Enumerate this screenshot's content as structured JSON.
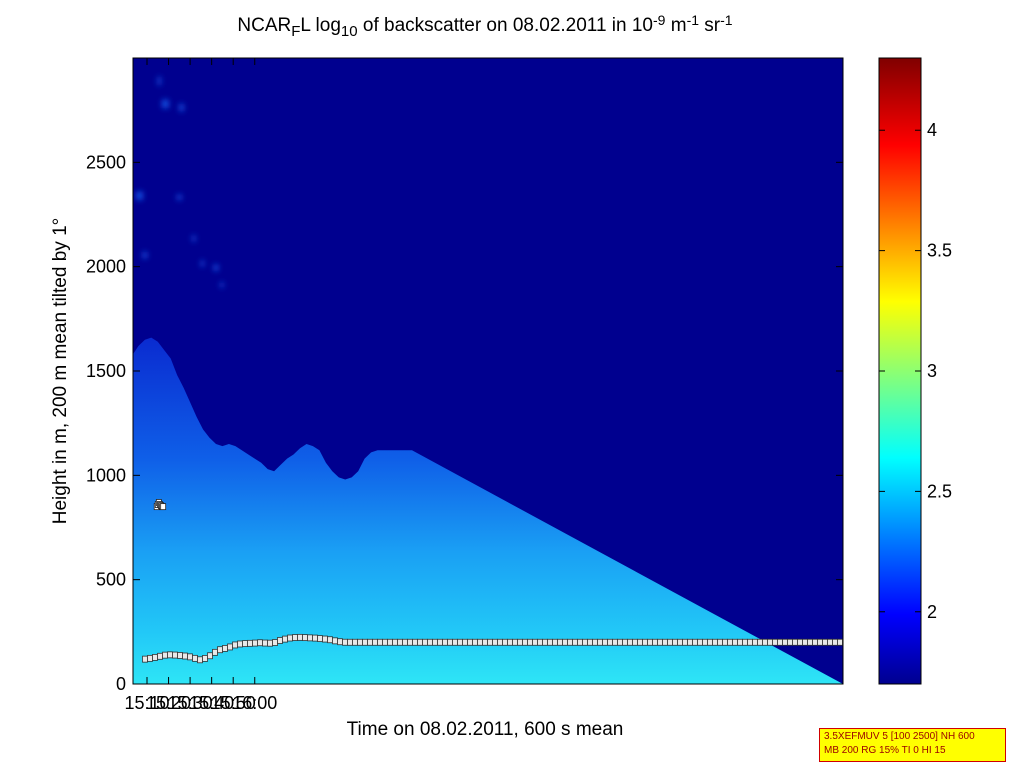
{
  "chart_data": {
    "type": "heatmap",
    "title": {
      "prefix": "NCAR",
      "sub_f": "F",
      "mid": "L log",
      "sub_10": "10",
      "rest": " of backscatter on 08.02.2011 in 10",
      "exp1": "-9",
      "unit_m": " m",
      "exp2": "-1",
      "unit_sr": " sr",
      "exp3": "-1"
    },
    "xlabel": "Time on 08.02.2011, 600 s mean",
    "ylabel": "Height in m, 200 m mean tilted by 1°",
    "x_ticks": [
      "15:10",
      "15:20",
      "15:30",
      "15:40",
      "15:50",
      "16:00"
    ],
    "y_ticks": [
      "0",
      "500",
      "1000",
      "1500",
      "2000",
      "2500"
    ],
    "x_range_min": [
      903.5,
      1233
    ],
    "x_tick_values_min": [
      910,
      920,
      930,
      940,
      950,
      960
    ],
    "ylim": [
      0,
      3000
    ],
    "y_tick_values": [
      0,
      500,
      1000,
      1500,
      2000,
      2500
    ],
    "colorbar": {
      "ticks": [
        "2",
        "2.5",
        "3",
        "3.5",
        "4"
      ],
      "tick_values": [
        2,
        2.5,
        3,
        3.5,
        4
      ],
      "range": [
        1.7,
        4.3
      ],
      "colormap": "jet"
    },
    "boundary_layer_min": [
      903.5,
      1233
    ],
    "boundary_layer_height": [
      [
        903.5,
        110
      ],
      [
        906,
        112
      ],
      [
        908,
        118
      ],
      [
        910,
        120
      ],
      [
        912,
        124
      ],
      [
        915,
        130
      ],
      [
        918,
        138
      ],
      [
        921,
        140
      ],
      [
        924,
        138
      ],
      [
        927,
        135
      ],
      [
        929,
        132
      ],
      [
        931,
        128
      ],
      [
        933,
        120
      ],
      [
        935,
        115
      ],
      [
        936,
        118
      ],
      [
        938,
        128
      ],
      [
        940,
        140
      ],
      [
        942,
        155
      ],
      [
        944,
        165
      ],
      [
        946,
        170
      ],
      [
        948,
        175
      ],
      [
        950,
        185
      ],
      [
        952,
        190
      ],
      [
        954,
        193
      ],
      [
        956,
        194
      ],
      [
        958,
        195
      ],
      [
        960,
        196
      ],
      [
        962,
        198
      ],
      [
        964,
        197
      ],
      [
        966,
        195
      ],
      [
        968,
        196
      ],
      [
        970,
        200
      ],
      [
        972,
        210
      ],
      [
        974,
        215
      ],
      [
        976,
        220
      ],
      [
        978,
        222
      ],
      [
        980,
        224
      ],
      [
        982,
        223
      ],
      [
        984,
        222
      ],
      [
        986,
        221
      ],
      [
        988,
        220
      ],
      [
        990,
        218
      ],
      [
        992,
        216
      ],
      [
        994,
        214
      ],
      [
        996,
        210
      ],
      [
        998,
        205
      ],
      [
        1000,
        202
      ],
      [
        1002,
        200
      ],
      [
        1004,
        200
      ],
      [
        1006,
        200
      ],
      [
        1008,
        200
      ],
      [
        1010,
        200
      ],
      [
        1012,
        200
      ],
      [
        1014,
        200
      ],
      [
        1016,
        200
      ],
      [
        1018,
        200
      ],
      [
        1020,
        200
      ],
      [
        1022,
        200
      ],
      [
        1024,
        200
      ],
      [
        1026,
        200
      ],
      [
        1028,
        200
      ],
      [
        1030,
        200
      ],
      [
        1032,
        200
      ],
      [
        1233,
        200
      ]
    ],
    "elevated_points": [
      [
        914.5,
        850
      ],
      [
        915,
        860
      ],
      [
        915.5,
        870
      ],
      [
        916,
        860
      ],
      [
        916.5,
        855
      ],
      [
        917,
        850
      ],
      [
        917.5,
        850
      ]
    ],
    "cloud_top": [
      [
        903.5,
        1580
      ],
      [
        906,
        1620
      ],
      [
        909,
        1650
      ],
      [
        912,
        1660
      ],
      [
        915,
        1640
      ],
      [
        918,
        1600
      ],
      [
        921,
        1560
      ],
      [
        924,
        1480
      ],
      [
        927,
        1420
      ],
      [
        930,
        1350
      ],
      [
        933,
        1280
      ],
      [
        936,
        1220
      ],
      [
        939,
        1180
      ],
      [
        942,
        1150
      ],
      [
        945,
        1140
      ],
      [
        948,
        1150
      ],
      [
        951,
        1140
      ],
      [
        954,
        1120
      ],
      [
        957,
        1100
      ],
      [
        960,
        1080
      ],
      [
        963,
        1060
      ],
      [
        966,
        1030
      ],
      [
        969,
        1020
      ],
      [
        972,
        1050
      ],
      [
        975,
        1080
      ],
      [
        978,
        1100
      ],
      [
        981,
        1130
      ],
      [
        984,
        1150
      ],
      [
        987,
        1140
      ],
      [
        990,
        1120
      ],
      [
        993,
        1060
      ],
      [
        996,
        1020
      ],
      [
        999,
        990
      ],
      [
        1002,
        980
      ],
      [
        1005,
        990
      ],
      [
        1008,
        1020
      ],
      [
        1011,
        1080
      ],
      [
        1014,
        1110
      ],
      [
        1017,
        1120
      ],
      [
        1020,
        1120
      ],
      [
        1023,
        1120
      ],
      [
        1033,
        1120
      ]
    ],
    "cloud_patches": [
      [
        905,
        2320,
        3,
        40
      ],
      [
        917,
        2760,
        3,
        40
      ],
      [
        915,
        2870,
        1,
        40
      ],
      [
        925,
        2745,
        2,
        35
      ],
      [
        908,
        2040,
        2,
        30
      ],
      [
        924,
        2320,
        2,
        25
      ],
      [
        931,
        2120,
        1,
        30
      ],
      [
        935,
        2000,
        1,
        30
      ],
      [
        941,
        1980,
        2,
        30
      ],
      [
        944,
        1900,
        1,
        25
      ]
    ]
  },
  "info_box": {
    "line1": "3.5XEFMUV 5 [100 2500] NH 600",
    "line2": "MB 200 RG 15% TI 0 HI 15"
  }
}
